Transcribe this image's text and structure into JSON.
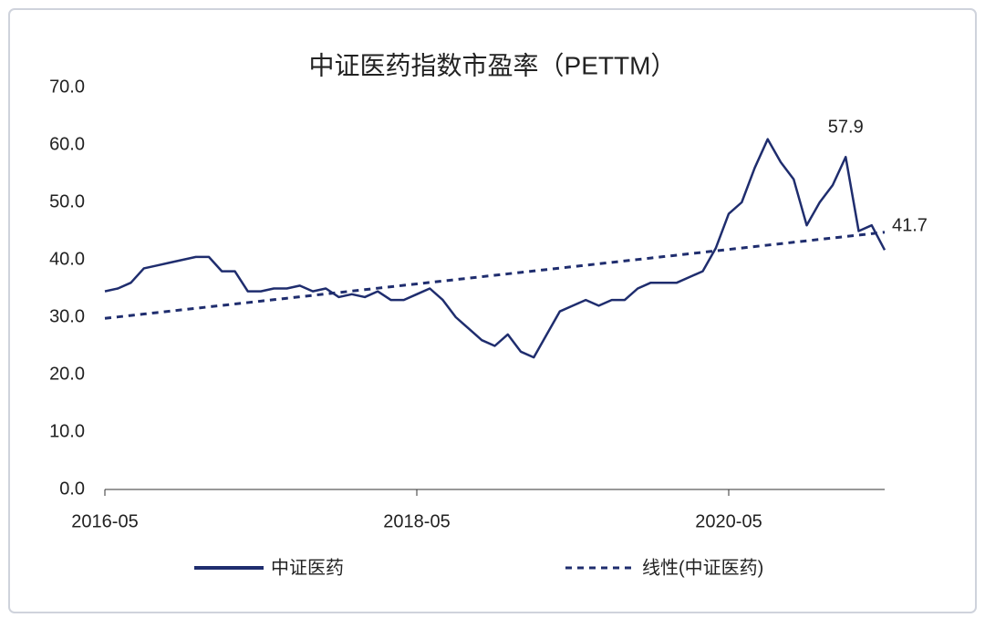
{
  "chart_data": {
    "type": "line",
    "title": "中证医药指数市盈率（PETTM）",
    "x": [
      "2016-05",
      "2016-06",
      "2016-07",
      "2016-08",
      "2016-09",
      "2016-10",
      "2016-11",
      "2016-12",
      "2017-01",
      "2017-02",
      "2017-03",
      "2017-04",
      "2017-05",
      "2017-06",
      "2017-07",
      "2017-08",
      "2017-09",
      "2017-10",
      "2017-11",
      "2017-12",
      "2018-01",
      "2018-02",
      "2018-03",
      "2018-04",
      "2018-05",
      "2018-06",
      "2018-07",
      "2018-08",
      "2018-09",
      "2018-10",
      "2018-11",
      "2018-12",
      "2019-01",
      "2019-02",
      "2019-03",
      "2019-04",
      "2019-05",
      "2019-06",
      "2019-07",
      "2019-08",
      "2019-09",
      "2019-10",
      "2019-11",
      "2019-12",
      "2020-01",
      "2020-02",
      "2020-03",
      "2020-04",
      "2020-05",
      "2020-06",
      "2020-07",
      "2020-08",
      "2020-09",
      "2020-10",
      "2020-11",
      "2020-12",
      "2021-01",
      "2021-02",
      "2021-03",
      "2021-04",
      "2021-05"
    ],
    "series": [
      {
        "name": "中证医药",
        "color": "#1f2d6e",
        "dash": false,
        "values": [
          34.5,
          35,
          36,
          38.5,
          39,
          39.5,
          40,
          40.5,
          40.5,
          38,
          38,
          34.5,
          34.5,
          35,
          35,
          35.5,
          34.5,
          35,
          33.5,
          34,
          33.5,
          34.5,
          33,
          33,
          34,
          35,
          33,
          30,
          28,
          26,
          25,
          27,
          24,
          23,
          27,
          31,
          32,
          33,
          32,
          33,
          33,
          35,
          36,
          36,
          36,
          37,
          38,
          42,
          48,
          50,
          56,
          61,
          57,
          54,
          46,
          50,
          53,
          57.9,
          45,
          46,
          41.7
        ]
      },
      {
        "name": "线性(中证医药)",
        "color": "#1f2d6e",
        "dash": true,
        "values": [
          29.8,
          30.05,
          30.3,
          30.55,
          30.8,
          31.05,
          31.3,
          31.55,
          31.8,
          32.05,
          32.3,
          32.55,
          32.8,
          33.05,
          33.3,
          33.55,
          33.8,
          34.05,
          34.3,
          34.55,
          34.8,
          35.05,
          35.3,
          35.55,
          35.8,
          36.05,
          36.3,
          36.55,
          36.8,
          37.05,
          37.3,
          37.55,
          37.8,
          38.05,
          38.3,
          38.55,
          38.8,
          39.05,
          39.3,
          39.55,
          39.8,
          40.05,
          40.3,
          40.55,
          40.8,
          41.05,
          41.3,
          41.55,
          41.8,
          42.05,
          42.3,
          42.55,
          42.8,
          43.05,
          43.3,
          43.55,
          43.8,
          44.05,
          44.3,
          44.55,
          44.8
        ]
      }
    ],
    "xlim": [
      "2016-05",
      "2021-05"
    ],
    "xticks": [
      "2016-05",
      "2018-05",
      "2020-05"
    ],
    "ylim": [
      0,
      70
    ],
    "yticks": [
      {
        "value": 0,
        "label": "0.0"
      },
      {
        "value": 10,
        "label": "10.0"
      },
      {
        "value": 20,
        "label": "20.0"
      },
      {
        "value": 30,
        "label": "30.0"
      },
      {
        "value": 40,
        "label": "40.0"
      },
      {
        "value": 50,
        "label": "50.0"
      },
      {
        "value": 60,
        "label": "60.0"
      },
      {
        "value": 70,
        "label": "70.0"
      }
    ],
    "annotations": [
      {
        "text": "57.9",
        "x": "2021-02",
        "y": 57.9
      },
      {
        "text": "41.7",
        "x": "2021-05",
        "y": 41.7
      }
    ],
    "grid": false,
    "legend": "bottom"
  }
}
